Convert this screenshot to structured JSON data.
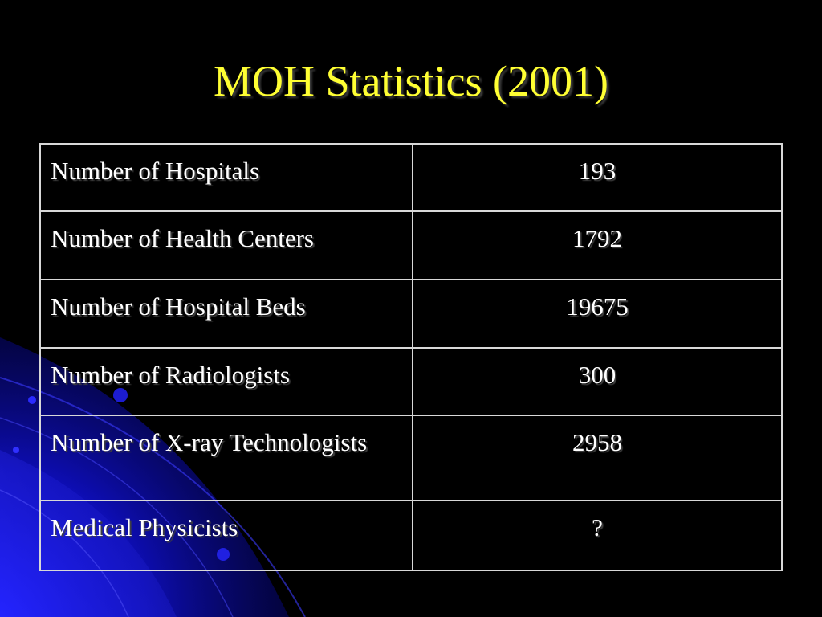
{
  "slide": {
    "title": "MOH Statistics (2001)"
  },
  "table": {
    "rows": [
      {
        "label": "Number of Hospitals",
        "value": "193"
      },
      {
        "label": "Number of Health Centers",
        "value": "1792"
      },
      {
        "label": "Number of Hospital Beds",
        "value": "19675"
      },
      {
        "label": "Number of Radiologists",
        "value": "300"
      },
      {
        "label": "Number of X-ray Technologists",
        "value": "2958"
      },
      {
        "label": "Medical Physicists",
        "value": "?"
      }
    ]
  },
  "colors": {
    "background": "#000000",
    "title": "#ffff33",
    "text": "#ffffff",
    "border": "#d8d8d8",
    "accent": "#1a1aff"
  }
}
